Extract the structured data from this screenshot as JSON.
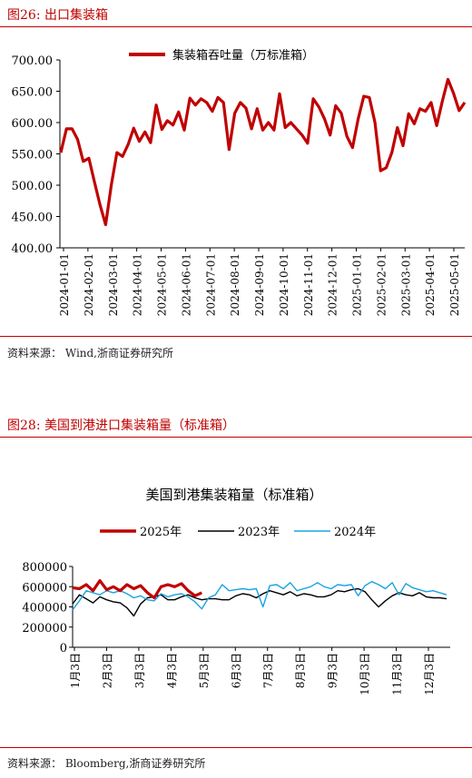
{
  "figure1": {
    "title": "图26:   出口集装箱",
    "source": "资料来源：  Wind,浙商证券研究所",
    "chart_data": {
      "type": "line",
      "title": "",
      "series": [
        {
          "name": "集装箱吞吐量（万标准箱）",
          "color": "#c00000",
          "values": [
            552,
            590,
            590,
            573,
            538,
            543,
            505,
            468,
            437,
            500,
            552,
            546,
            565,
            591,
            570,
            585,
            568,
            628,
            589,
            603,
            596,
            617,
            588,
            639,
            628,
            638,
            632,
            618,
            640,
            632,
            557,
            615,
            632,
            623,
            590,
            622,
            588,
            600,
            588,
            646,
            592,
            600,
            590,
            580,
            567,
            638,
            625,
            606,
            580,
            627,
            615,
            578,
            560,
            606,
            642,
            640,
            600,
            523,
            528,
            552,
            592,
            563,
            614,
            598,
            622,
            618,
            632,
            595,
            634,
            669,
            647,
            619,
            632
          ]
        }
      ],
      "x_tick_labels": [
        "2024-01-01",
        "2024-02-01",
        "2024-03-01",
        "2024-04-01",
        "2024-05-01",
        "2024-06-01",
        "2024-07-01",
        "2024-08-01",
        "2024-09-01",
        "2024-10-01",
        "2024-11-01",
        "2024-12-01",
        "2025-01-01",
        "2025-02-01",
        "2025-03-01",
        "2025-04-01",
        "2025-05-01"
      ],
      "y_tick_labels": [
        "400.00",
        "450.00",
        "500.00",
        "550.00",
        "600.00",
        "650.00",
        "700.00"
      ],
      "ylim": [
        400,
        700
      ],
      "legend": "top-center"
    }
  },
  "figure2": {
    "title": "图28:   美国到港进口集装箱量（标准箱）",
    "source": "资料来源：  Bloomberg,浙商证券研究所",
    "chart_data": {
      "type": "line",
      "title": "美国到港集装箱量（标准箱）",
      "x_tick_labels": [
        "1月3日",
        "2月3日",
        "3月3日",
        "4月3日",
        "5月3日",
        "6月3日",
        "7月3日",
        "8月3日",
        "9月3日",
        "10月3日",
        "11月3日",
        "12月3日"
      ],
      "y_tick_labels": [
        "0",
        "200000",
        "400000",
        "600000",
        "800000"
      ],
      "ylim": [
        0,
        800000
      ],
      "legend": "top",
      "series": [
        {
          "name": "2025年",
          "color": "#c00000",
          "values": [
            590000,
            580000,
            620000,
            560000,
            660000,
            570000,
            600000,
            560000,
            620000,
            580000,
            610000,
            540000,
            490000,
            600000,
            620000,
            600000,
            630000,
            560000,
            510000,
            540000
          ]
        },
        {
          "name": "2023年",
          "color": "#000000",
          "values": [
            430000,
            520000,
            480000,
            440000,
            500000,
            470000,
            450000,
            440000,
            390000,
            310000,
            430000,
            490000,
            500000,
            520000,
            470000,
            470000,
            500000,
            520000,
            490000,
            470000,
            480000,
            480000,
            470000,
            470000,
            510000,
            530000,
            520000,
            490000,
            530000,
            560000,
            540000,
            520000,
            550000,
            510000,
            530000,
            520000,
            500000,
            500000,
            520000,
            560000,
            550000,
            570000,
            580000,
            550000,
            470000,
            400000,
            460000,
            510000,
            540000,
            520000,
            510000,
            540000,
            500000,
            490000,
            490000,
            480000
          ]
        },
        {
          "name": "2024年",
          "color": "#1aa3e0",
          "values": [
            370000,
            460000,
            560000,
            540000,
            520000,
            560000,
            540000,
            560000,
            530000,
            490000,
            510000,
            470000,
            460000,
            530000,
            500000,
            520000,
            530000,
            500000,
            450000,
            380000,
            490000,
            520000,
            620000,
            560000,
            570000,
            580000,
            570000,
            580000,
            400000,
            610000,
            620000,
            580000,
            640000,
            560000,
            580000,
            600000,
            640000,
            600000,
            580000,
            620000,
            610000,
            620000,
            510000,
            610000,
            650000,
            620000,
            580000,
            640000,
            520000,
            630000,
            590000,
            570000,
            550000,
            560000,
            540000,
            520000
          ]
        }
      ]
    }
  }
}
